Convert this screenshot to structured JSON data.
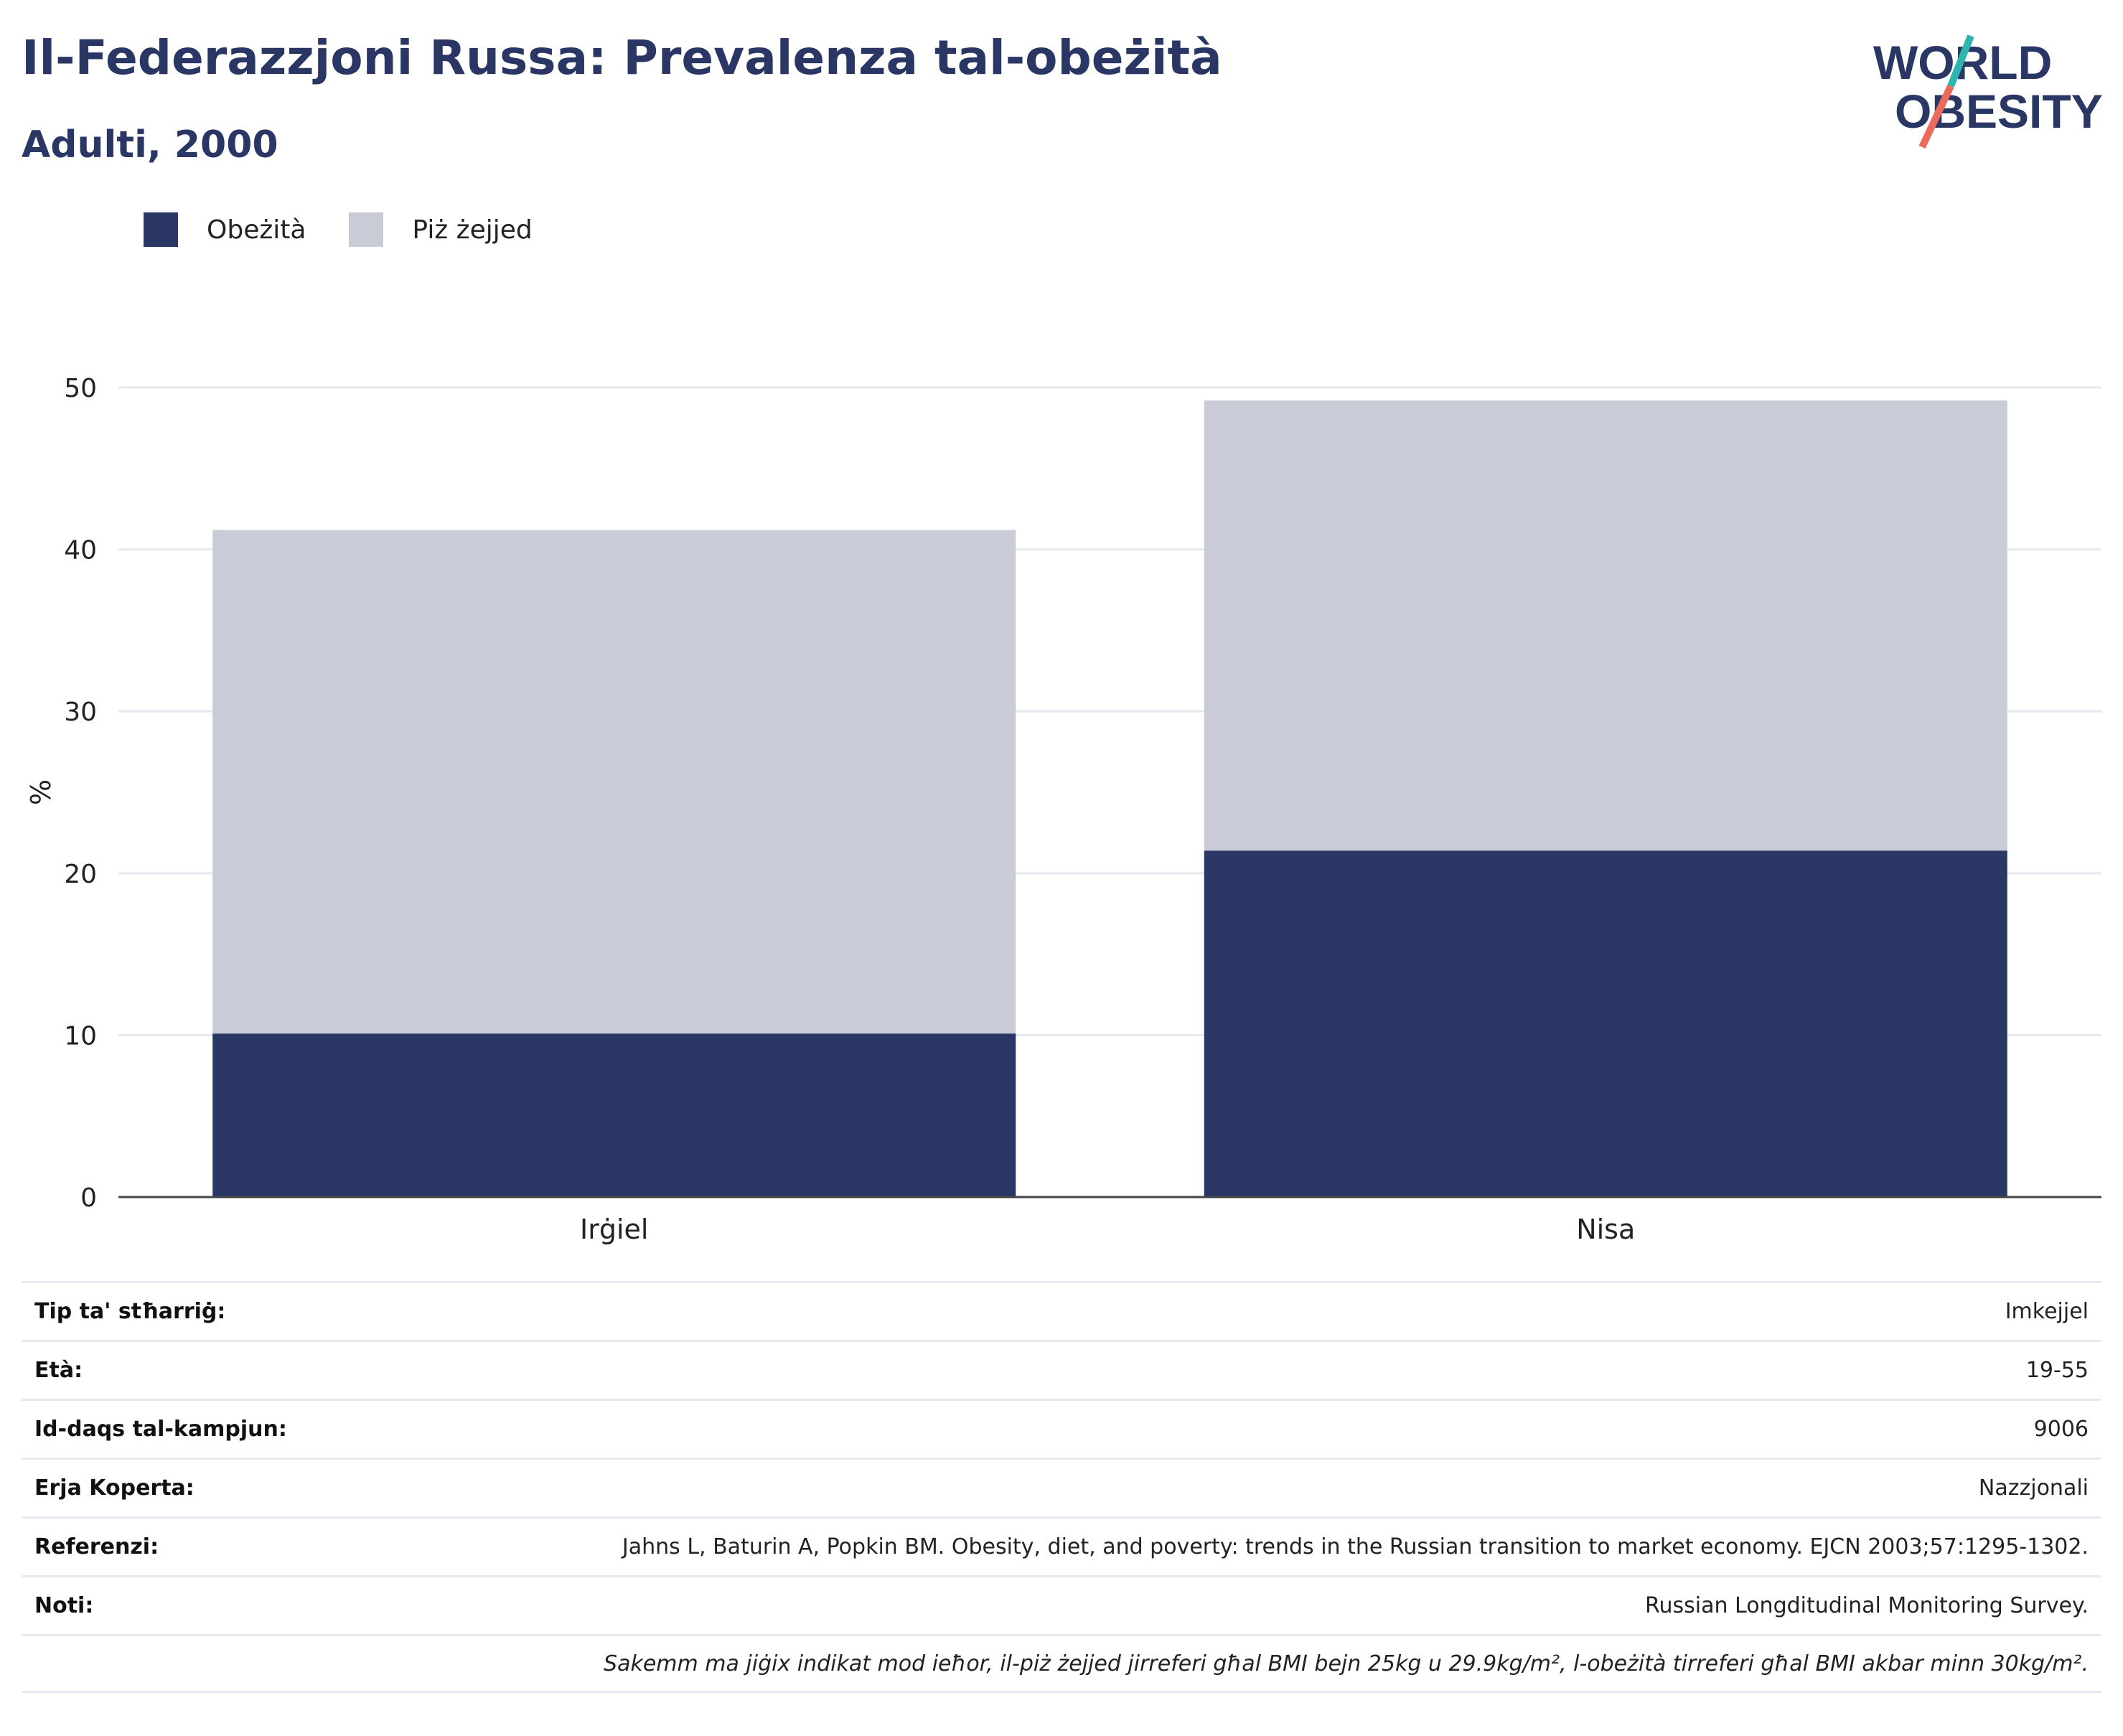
{
  "header": {
    "title": "Il-Federazzjoni Russa: Prevalenza tal-obeżità",
    "subtitle": "Adulti, 2000"
  },
  "logo": {
    "line1": "WORLD",
    "line2": "OBESITY"
  },
  "colors": {
    "obesity": "#2a3764",
    "overweight": "#c9ccd7",
    "title": "#2a3764"
  },
  "chart_data": {
    "type": "bar",
    "stacked": true,
    "categories": [
      "Irġiel",
      "Nisa"
    ],
    "series": [
      {
        "name": "Obeżità",
        "values": [
          10.1,
          21.4
        ],
        "color": "#2a3764"
      },
      {
        "name": "Piż żejjed",
        "values": [
          31.1,
          27.8
        ],
        "color": "#c9ccd7"
      }
    ],
    "ylabel": "%",
    "ylim": [
      0,
      50
    ],
    "yticks": [
      0,
      10,
      20,
      30,
      40,
      50
    ],
    "grid": true,
    "legend": "top-left"
  },
  "meta": [
    {
      "label": "Tip ta' stħarriġ:",
      "value": "Imkejjel"
    },
    {
      "label": "Età:",
      "value": "19-55"
    },
    {
      "label": "Id-daqs tal-kampjun:",
      "value": "9006"
    },
    {
      "label": "Erja Koperta:",
      "value": "Nazzjonali"
    },
    {
      "label": "Referenzi:",
      "value": "Jahns L, Baturin A, Popkin BM. Obesity, diet, and poverty: trends in the Russian transition to market economy. EJCN 2003;57:1295-1302."
    },
    {
      "label": "Noti:",
      "value": "Russian Longditudinal Monitoring Survey."
    },
    {
      "label": "",
      "value": "Sakemm ma jiġix indikat mod ieħor, il-piż żejjed jirreferi għal BMI bejn 25kg u 29.9kg/m², l-obeżità tirreferi għal BMI akbar minn 30kg/m²."
    }
  ]
}
